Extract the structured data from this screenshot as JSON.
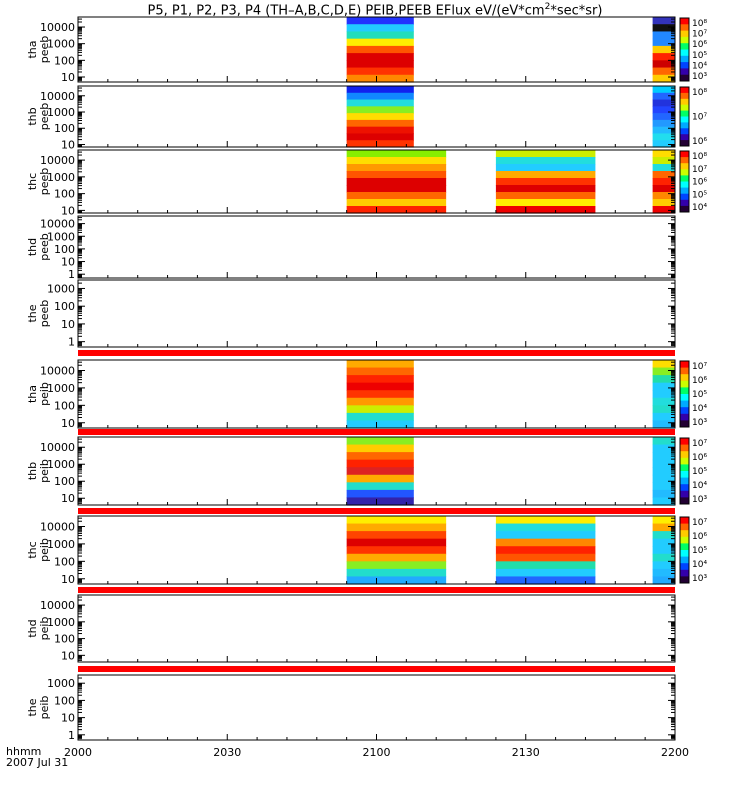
{
  "title": {
    "prefix": "P5, P1, P2, P3, P4 (TH–A,B,C,D,E) PEIB,PEEB EFlux eV/(eV*cm",
    "sup": "2",
    "suffix": "*sec*sr)"
  },
  "x_axis": {
    "label_line1": "hhmm",
    "label_line2": "2007 Jul 31",
    "ticks": [
      "2000",
      "2030",
      "2100",
      "2130",
      "2200"
    ],
    "tick_minutes": [
      0,
      30,
      60,
      90,
      120
    ],
    "range_minutes": [
      0,
      120
    ]
  },
  "colors": {
    "separator": "#ff0000",
    "frame": "#000000"
  },
  "chart_data": {
    "type": "heatmap",
    "time_origin": "2007-07-31 20:00",
    "panels": [
      {
        "id": "thapeeb",
        "probe": "tha",
        "product": "peeb",
        "ytick_labels": [
          "10000",
          "1000",
          "100",
          "10"
        ],
        "ytick_values": [
          10000,
          1000,
          100,
          10
        ],
        "ylim": [
          5,
          40000
        ],
        "has_data": true,
        "colorbar": [
          "10⁸",
          "10⁷",
          "10⁶",
          "10⁵",
          "10⁴",
          "10³"
        ],
        "blocks": [
          {
            "t": [
              54.0,
              67.5
            ],
            "rows": [
              "#2233ff",
              "#22ccff",
              "#22ddbb",
              "#ffee00",
              "#ff5500",
              "#dd0000",
              "#dd0000",
              "#ff3300",
              "#ff8800"
            ]
          },
          {
            "t": [
              115.5,
              120.0
            ],
            "rows": [
              "#3333bb",
              "#111111",
              "#2288ff",
              "#2288ff",
              "#ffcc00",
              "#ff2200",
              "#cc0000",
              "#ff6600",
              "#ffcc00"
            ]
          }
        ]
      },
      {
        "id": "thbpeeb",
        "probe": "thb",
        "product": "peeb",
        "ytick_labels": [
          "10000",
          "1000",
          "100",
          "10"
        ],
        "ytick_values": [
          10000,
          1000,
          100,
          10
        ],
        "ylim": [
          7,
          40000
        ],
        "has_data": true,
        "colorbar": [
          "10⁸",
          "10⁷",
          "10⁶"
        ],
        "blocks": [
          {
            "t": [
              54.0,
              67.5
            ],
            "rows": [
              "#1122ee",
              "#1188ff",
              "#22dddd",
              "#88ee22",
              "#ffdd00",
              "#ff6600",
              "#ee1100",
              "#dd0000",
              "#ff3300"
            ]
          },
          {
            "t": [
              115.5,
              120.0
            ],
            "rows": [
              "#00ccff",
              "#2266ff",
              "#2233dd",
              "#2244ff",
              "#2266ff",
              "#2299ff",
              "#22bbff",
              "#22ddee",
              "#22ccff"
            ]
          }
        ]
      },
      {
        "id": "thcpeeb",
        "probe": "thc",
        "product": "peeb",
        "ytick_labels": [
          "10000",
          "1000",
          "100",
          "10"
        ],
        "ytick_values": [
          10000,
          1000,
          100,
          10
        ],
        "ylim": [
          7,
          40000
        ],
        "has_data": true,
        "colorbar": [
          "10⁸",
          "10⁷",
          "10⁶",
          "10⁵",
          "10⁴"
        ],
        "blocks": [
          {
            "t": [
              54.0,
              74.0
            ],
            "rows": [
              "#88ee00",
              "#ffdd00",
              "#ff9900",
              "#ff5500",
              "#dd0000",
              "#dd0000",
              "#ff6600",
              "#ffcc00",
              "#ff2200"
            ]
          },
          {
            "t": [
              84.0,
              104.0
            ],
            "rows": [
              "#ccee00",
              "#22dddd",
              "#22ccff",
              "#ffaa00",
              "#ff3300",
              "#dd0000",
              "#ff6600",
              "#ffee00",
              "#ee0000"
            ]
          },
          {
            "t": [
              115.5,
              120.0
            ],
            "rows": [
              "#ffdd00",
              "#ccee00",
              "#22dddd",
              "#ff6600",
              "#ff2200",
              "#dd0000",
              "#ff8800",
              "#ffcc00",
              "#ee0000"
            ]
          }
        ]
      },
      {
        "id": "thdpeeb",
        "probe": "thd",
        "product": "peeb",
        "ytick_labels": [
          "10000",
          "1000",
          "100",
          "10",
          "1"
        ],
        "ytick_values": [
          10000,
          1000,
          100,
          10,
          1
        ],
        "ylim": [
          0.5,
          40000
        ],
        "has_data": false,
        "colorbar": [],
        "blocks": []
      },
      {
        "id": "thepeeb",
        "probe": "the",
        "product": "peeb",
        "ytick_labels": [
          "1000",
          "100",
          "10",
          "1"
        ],
        "ytick_values": [
          1000,
          100,
          10,
          1
        ],
        "ylim": [
          0.5,
          3000
        ],
        "has_data": false,
        "colorbar": [],
        "blocks": []
      },
      {
        "id": "thapeib",
        "probe": "tha",
        "product": "peib",
        "ytick_labels": [
          "10000",
          "1000",
          "100",
          "10"
        ],
        "ytick_values": [
          10000,
          1000,
          100,
          10
        ],
        "ylim": [
          5,
          40000
        ],
        "has_data": true,
        "colorbar": [
          "10⁷",
          "10⁶",
          "10⁵",
          "10⁴",
          "10³"
        ],
        "blocks": [
          {
            "t": [
              54.0,
              67.5
            ],
            "rows": [
              "#ffaa00",
              "#ff6600",
              "#ff2200",
              "#ee0000",
              "#ff3300",
              "#ff9900",
              "#ccee00",
              "#22ddcc",
              "#22ccff"
            ]
          },
          {
            "t": [
              115.5,
              120.0
            ],
            "rows": [
              "#ffdd00",
              "#88ee22",
              "#22ddaa",
              "#22ccff",
              "#22ccff",
              "#22dddd",
              "#22ddcc",
              "#22ccff",
              "#22bbff"
            ]
          }
        ]
      },
      {
        "id": "thbpeib",
        "probe": "thb",
        "product": "peib",
        "ytick_labels": [
          "10000",
          "1000",
          "100",
          "10"
        ],
        "ytick_values": [
          10000,
          1000,
          100,
          10
        ],
        "ylim": [
          4,
          40000
        ],
        "has_data": true,
        "colorbar": [
          "10⁷",
          "10⁶",
          "10⁵",
          "10⁴",
          "10³"
        ],
        "blocks": [
          {
            "t": [
              54.0,
              67.5
            ],
            "rows": [
              "#88ee22",
              "#ffcc00",
              "#ff6600",
              "#ff2200",
              "#dd2222",
              "#ffaa00",
              "#22ddcc",
              "#2255ff",
              "#3322aa"
            ]
          },
          {
            "t": [
              115.5,
              120.0
            ],
            "rows": [
              "#22ddcc",
              "#22ccff",
              "#22ccff",
              "#22ccff",
              "#22ccff",
              "#22ccff",
              "#22ccff",
              "#22bbff",
              "#22ccff"
            ]
          }
        ]
      },
      {
        "id": "thcpeib",
        "probe": "thc",
        "product": "peib",
        "ytick_labels": [
          "10000",
          "1000",
          "100",
          "10"
        ],
        "ytick_values": [
          10000,
          1000,
          100,
          10
        ],
        "ylim": [
          5,
          40000
        ],
        "has_data": true,
        "colorbar": [
          "10⁷",
          "10⁶",
          "10⁵",
          "10⁴",
          "10³"
        ],
        "blocks": [
          {
            "t": [
              54.0,
              74.0
            ],
            "rows": [
              "#ffee00",
              "#ffaa00",
              "#ff4400",
              "#dd0000",
              "#ff3300",
              "#ffaa00",
              "#88ee22",
              "#22ddcc",
              "#22aaff"
            ]
          },
          {
            "t": [
              84.0,
              104.0
            ],
            "rows": [
              "#ffee00",
              "#22dddd",
              "#22ccff",
              "#ff8800",
              "#ff2200",
              "#ff5500",
              "#22ddaa",
              "#22ccff",
              "#2266ff"
            ]
          },
          {
            "t": [
              115.5,
              120.0
            ],
            "rows": [
              "#ffee00",
              "#ffaa00",
              "#22ddcc",
              "#22ccff",
              "#22ccff",
              "#22ddcc",
              "#22ccff",
              "#22bbff",
              "#22aaff"
            ]
          }
        ]
      },
      {
        "id": "thdpeib",
        "probe": "thd",
        "product": "peib",
        "ytick_labels": [
          "10000",
          "1000",
          "100",
          "10"
        ],
        "ytick_values": [
          10000,
          1000,
          100,
          10
        ],
        "ylim": [
          4,
          40000
        ],
        "has_data": false,
        "colorbar": [],
        "blocks": []
      },
      {
        "id": "thepeib",
        "probe": "the",
        "product": "peib",
        "ytick_labels": [
          "1000",
          "100",
          "10",
          "1"
        ],
        "ytick_values": [
          1000,
          100,
          10,
          1
        ],
        "ylim": [
          0.5,
          3000
        ],
        "has_data": false,
        "colorbar": [],
        "blocks": []
      }
    ]
  }
}
